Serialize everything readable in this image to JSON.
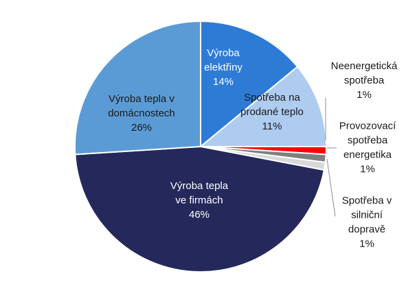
{
  "chart_data": {
    "type": "pie",
    "title": "",
    "start_angle_deg": 0,
    "direction": "clockwise",
    "slices": [
      {
        "label_lines": [
          "Výroba",
          "elektřiny"
        ],
        "value": 14,
        "value_label": "14%",
        "color": "#2e7bd6",
        "label_color": "#ffffff",
        "label_position": "inside"
      },
      {
        "label_lines": [
          "Spotřeba na",
          "prodané teplo"
        ],
        "value": 11,
        "value_label": "11%",
        "color": "#aecbf0",
        "label_color": "#1a1a1a",
        "label_position": "inside"
      },
      {
        "label_lines": [
          "Neenergetická",
          "spotřeba"
        ],
        "value": 1,
        "value_label": "1%",
        "color": "#ff0000",
        "label_color": "#1a1a1a",
        "label_position": "outside"
      },
      {
        "label_lines": [
          "Provozovací",
          "spotřeba",
          "energetika"
        ],
        "value": 1,
        "value_label": "1%",
        "color": "#7f7f7f",
        "label_color": "#1a1a1a",
        "label_position": "outside"
      },
      {
        "label_lines": [
          "Spotřeba v",
          "silniční",
          "dopravě"
        ],
        "value": 1,
        "value_label": "1%",
        "color": "#d9d9d9",
        "label_color": "#1a1a1a",
        "label_position": "outside"
      },
      {
        "label_lines": [
          "Výroba tepla",
          "ve firmách"
        ],
        "value": 46,
        "value_label": "46%",
        "color": "#24285a",
        "label_color": "#ffffff",
        "label_position": "inside"
      },
      {
        "label_lines": [
          "Výroba tepla v",
          "domácnostech"
        ],
        "value": 26,
        "value_label": "26%",
        "color": "#5b9bd5",
        "label_color": "#1a1a1a",
        "label_position": "inside"
      }
    ]
  }
}
